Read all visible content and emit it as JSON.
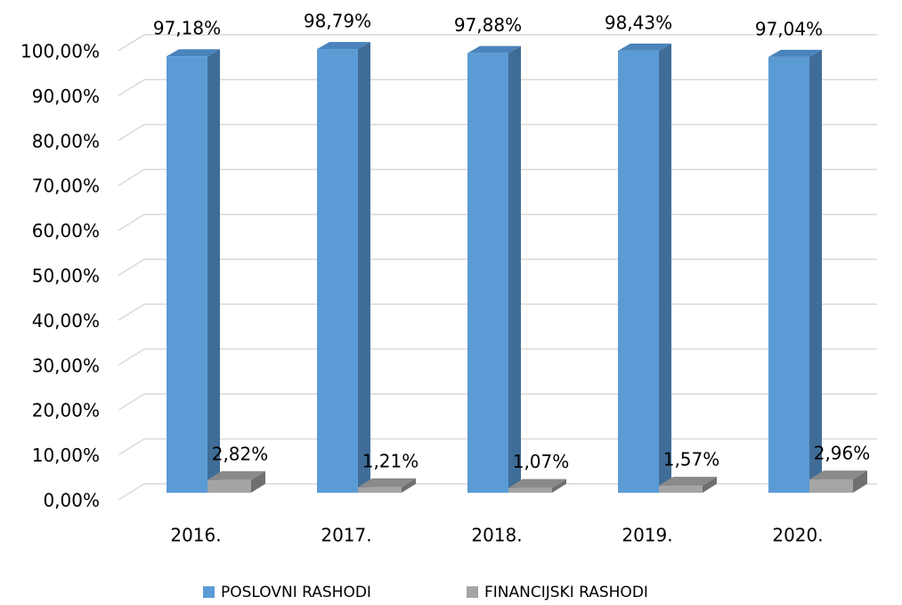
{
  "chart_data": {
    "type": "bar3d",
    "categories": [
      "2016.",
      "2017.",
      "2018.",
      "2019.",
      "2020."
    ],
    "series": [
      {
        "name": "POSLOVNI RASHODI",
        "color": "#5b9bd5",
        "side_color": "#3f6d98",
        "top_color": "#4a84bc",
        "values": [
          97.18,
          98.79,
          97.88,
          98.43,
          97.04
        ],
        "value_labels": [
          "97,18%",
          "98,79%",
          "97,88%",
          "98,43%",
          "97,04%"
        ]
      },
      {
        "name": "FINANCIJSKI RASHODI",
        "color": "#a5a5a5",
        "side_color": "#6f6f6f",
        "top_color": "#8a8a8a",
        "values": [
          2.82,
          1.21,
          1.07,
          1.57,
          2.96
        ],
        "value_labels": [
          "2,82%",
          "1,21%",
          "1,07%",
          "1,57%",
          "2,96%"
        ]
      }
    ],
    "ylim": [
      0,
      100
    ],
    "yticks": [
      {
        "value": 0,
        "label": "0,00%"
      },
      {
        "value": 10,
        "label": "10,00%"
      },
      {
        "value": 20,
        "label": "20,00%"
      },
      {
        "value": 30,
        "label": "30,00%"
      },
      {
        "value": 40,
        "label": "40,00%"
      },
      {
        "value": 50,
        "label": "50,00%"
      },
      {
        "value": 60,
        "label": "60,00%"
      },
      {
        "value": 70,
        "label": "70,00%"
      },
      {
        "value": 80,
        "label": "80,00%"
      },
      {
        "value": 90,
        "label": "90,00%"
      },
      {
        "value": 100,
        "label": "100,00%"
      }
    ],
    "grid": true,
    "legend": "bottom"
  }
}
